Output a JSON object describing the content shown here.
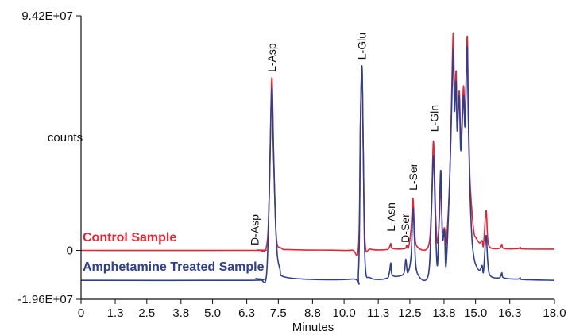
{
  "chart_data": {
    "type": "line",
    "title": "",
    "xlabel": "Minutes",
    "ylabel": "counts",
    "xlim": [
      0,
      18.0
    ],
    "ylim": [
      -19600000,
      94200000
    ],
    "x_ticks": [
      "0",
      "1.3",
      "2.5",
      "3.8",
      "5.0",
      "6.3",
      "7.5",
      "8.8",
      "10.0",
      "11.3",
      "12.5",
      "13.8",
      "15.0",
      "16.3",
      "18.0"
    ],
    "y_ticks": [
      "9.42E+07",
      "0",
      "-1.96E+07"
    ],
    "grid": false,
    "colors": {
      "control": "#e32636",
      "treated": "#2e3f8f",
      "axis": "#111111"
    },
    "series": [
      {
        "name": "Control Sample",
        "baseline": 0,
        "points": [
          [
            0,
            0
          ],
          [
            6.5,
            0
          ],
          [
            6.7,
            150000
          ],
          [
            6.8,
            0
          ],
          [
            7.05,
            1500000
          ],
          [
            7.15,
            20000000
          ],
          [
            7.25,
            69000000
          ],
          [
            7.32,
            40000000
          ],
          [
            7.42,
            6000000
          ],
          [
            7.6,
            1000000
          ],
          [
            8.0,
            300000
          ],
          [
            9.5,
            100000
          ],
          [
            10.3,
            100000
          ],
          [
            10.55,
            2000000
          ],
          [
            10.62,
            50000000
          ],
          [
            10.68,
            74000000
          ],
          [
            10.73,
            40000000
          ],
          [
            10.8,
            3000000
          ],
          [
            11.0,
            500000
          ],
          [
            11.6,
            300000
          ],
          [
            11.72,
            1200000
          ],
          [
            11.78,
            2800000
          ],
          [
            11.84,
            800000
          ],
          [
            12.3,
            700000
          ],
          [
            12.38,
            2000000
          ],
          [
            12.45,
            1200000
          ],
          [
            12.55,
            9000000
          ],
          [
            12.62,
            21000000
          ],
          [
            12.68,
            8000000
          ],
          [
            12.78,
            1500000
          ],
          [
            13.2,
            1500000
          ],
          [
            13.32,
            17000000
          ],
          [
            13.4,
            44000000
          ],
          [
            13.48,
            15000000
          ],
          [
            13.55,
            3000000
          ],
          [
            13.62,
            12000000
          ],
          [
            13.68,
            26000000
          ],
          [
            13.74,
            8000000
          ],
          [
            13.82,
            9000000
          ],
          [
            13.88,
            3000000
          ],
          [
            14.02,
            30000000
          ],
          [
            14.12,
            78000000
          ],
          [
            14.16,
            86000000
          ],
          [
            14.2,
            60000000
          ],
          [
            14.26,
            72000000
          ],
          [
            14.3,
            50000000
          ],
          [
            14.38,
            64000000
          ],
          [
            14.44,
            44000000
          ],
          [
            14.54,
            66000000
          ],
          [
            14.6,
            52000000
          ],
          [
            14.68,
            86000000
          ],
          [
            14.72,
            60000000
          ],
          [
            14.78,
            30000000
          ],
          [
            14.86,
            16000000
          ],
          [
            14.94,
            7000000
          ],
          [
            15.02,
            5000000
          ],
          [
            15.15,
            3000000
          ],
          [
            15.25,
            4000000
          ],
          [
            15.3,
            2000000
          ],
          [
            15.4,
            16000000
          ],
          [
            15.46,
            5000000
          ],
          [
            15.55,
            1200000
          ],
          [
            15.9,
            800000
          ],
          [
            16.0,
            2500000
          ],
          [
            16.07,
            800000
          ],
          [
            16.6,
            700000
          ],
          [
            16.7,
            1200000
          ],
          [
            16.8,
            600000
          ],
          [
            18.0,
            500000
          ]
        ]
      },
      {
        "name": "Amphetamine Treated Sample",
        "baseline": -12000000,
        "points": [
          [
            0,
            -12000000
          ],
          [
            6.4,
            -12000000
          ],
          [
            6.65,
            -11300000
          ],
          [
            6.85,
            -11900000
          ],
          [
            7.05,
            -10000000
          ],
          [
            7.15,
            20000000
          ],
          [
            7.25,
            65000000
          ],
          [
            7.32,
            38000000
          ],
          [
            7.42,
            5000000
          ],
          [
            7.55,
            -7000000
          ],
          [
            7.9,
            -11000000
          ],
          [
            10.3,
            -11500000
          ],
          [
            10.55,
            -8000000
          ],
          [
            10.62,
            50000000
          ],
          [
            10.68,
            74000000
          ],
          [
            10.73,
            40000000
          ],
          [
            10.8,
            -5000000
          ],
          [
            11.0,
            -11000000
          ],
          [
            11.6,
            -11300000
          ],
          [
            11.72,
            -9000000
          ],
          [
            11.78,
            -5000000
          ],
          [
            11.84,
            -10000000
          ],
          [
            12.2,
            -10000000
          ],
          [
            12.3,
            -8000000
          ],
          [
            12.35,
            -3500000
          ],
          [
            12.42,
            -9000000
          ],
          [
            12.55,
            -2000000
          ],
          [
            12.62,
            17000000
          ],
          [
            12.68,
            4000000
          ],
          [
            12.78,
            -9000000
          ],
          [
            13.2,
            -10000000
          ],
          [
            13.32,
            15000000
          ],
          [
            13.4,
            38000000
          ],
          [
            13.48,
            8000000
          ],
          [
            13.55,
            -6000000
          ],
          [
            13.62,
            15000000
          ],
          [
            13.68,
            32000000
          ],
          [
            13.74,
            5000000
          ],
          [
            13.82,
            8000000
          ],
          [
            13.88,
            -6000000
          ],
          [
            14.02,
            30000000
          ],
          [
            14.12,
            70000000
          ],
          [
            14.16,
            80000000
          ],
          [
            14.2,
            56000000
          ],
          [
            14.26,
            68000000
          ],
          [
            14.3,
            48000000
          ],
          [
            14.38,
            62000000
          ],
          [
            14.44,
            40000000
          ],
          [
            14.54,
            62000000
          ],
          [
            14.6,
            50000000
          ],
          [
            14.68,
            82000000
          ],
          [
            14.72,
            55000000
          ],
          [
            14.78,
            26000000
          ],
          [
            14.86,
            5000000
          ],
          [
            14.94,
            -3000000
          ],
          [
            15.02,
            -6000000
          ],
          [
            15.15,
            -8000000
          ],
          [
            15.25,
            -6000000
          ],
          [
            15.3,
            -8500000
          ],
          [
            15.4,
            6000000
          ],
          [
            15.46,
            -4000000
          ],
          [
            15.55,
            -10000000
          ],
          [
            15.9,
            -11000000
          ],
          [
            16.0,
            -9000000
          ],
          [
            16.07,
            -11000000
          ],
          [
            16.6,
            -11500000
          ],
          [
            16.7,
            -11000000
          ],
          [
            16.8,
            -11700000
          ],
          [
            18.0,
            -12000000
          ]
        ]
      }
    ],
    "annotations": [
      {
        "label": "D-Asp",
        "x": 6.6,
        "y": 500000
      },
      {
        "label": "L-Asp",
        "x": 7.25,
        "y": 70000000
      },
      {
        "label": "L-Glu",
        "x": 10.68,
        "y": 75000000
      },
      {
        "label": "L-Asn",
        "x": 11.78,
        "y": 6000000
      },
      {
        "label": "D-Ser",
        "x": 12.33,
        "y": 1500000
      },
      {
        "label": "L-Ser",
        "x": 12.62,
        "y": 22500000
      },
      {
        "label": "L-Gln",
        "x": 13.42,
        "y": 46000000
      }
    ]
  }
}
